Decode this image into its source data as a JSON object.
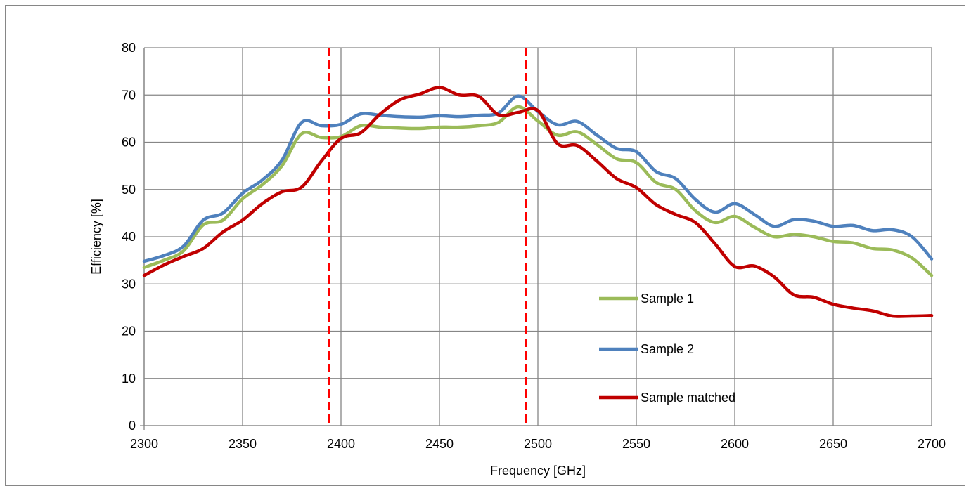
{
  "chart_data": {
    "type": "line",
    "title": "",
    "xlabel": "Frequency [GHz]",
    "ylabel": "Efficiency [%]",
    "xlim": [
      2300,
      2700
    ],
    "ylim": [
      0,
      80
    ],
    "xticks": [
      2300,
      2350,
      2400,
      2450,
      2500,
      2550,
      2600,
      2650,
      2700
    ],
    "yticks": [
      0,
      10,
      20,
      30,
      40,
      50,
      60,
      70,
      80
    ],
    "grid": true,
    "legend_position": "bottom-right",
    "x": [
      2300,
      2310,
      2320,
      2330,
      2340,
      2350,
      2360,
      2370,
      2380,
      2390,
      2400,
      2410,
      2420,
      2430,
      2440,
      2450,
      2460,
      2470,
      2480,
      2490,
      2500,
      2510,
      2520,
      2530,
      2540,
      2550,
      2560,
      2570,
      2580,
      2590,
      2600,
      2610,
      2620,
      2630,
      2640,
      2650,
      2660,
      2670,
      2680,
      2690,
      2700
    ],
    "series": [
      {
        "name": "Sample 1",
        "color": "#9bbb59",
        "values": [
          33.5,
          35,
          37,
          42.5,
          43.5,
          48,
          51,
          55,
          61.8,
          61,
          61.2,
          63.5,
          63.2,
          63,
          62.9,
          63.2,
          63.2,
          63.5,
          64.2,
          67.5,
          64.5,
          61.5,
          62.2,
          59.5,
          56.5,
          55.7,
          51.5,
          50,
          45.5,
          43,
          44.3,
          42,
          40,
          40.5,
          40,
          39,
          38.7,
          37.5,
          37.2,
          35.5,
          31.8
        ]
      },
      {
        "name": "Sample 2",
        "color": "#4f81bd",
        "values": [
          34.8,
          36,
          38,
          43.5,
          45,
          49.2,
          52,
          56.2,
          64.2,
          63.5,
          63.8,
          66,
          65.7,
          65.4,
          65.3,
          65.6,
          65.4,
          65.7,
          66.2,
          69.8,
          66.5,
          63.7,
          64.4,
          61.5,
          58.7,
          58,
          53.8,
          52.3,
          47.9,
          45.2,
          47,
          44.7,
          42.2,
          43.6,
          43.3,
          42.2,
          42.4,
          41.3,
          41.5,
          40,
          35.3
        ]
      },
      {
        "name": "Sample matched",
        "color": "#c00000",
        "values": [
          31.8,
          34,
          35.8,
          37.5,
          41,
          43.5,
          47,
          49.5,
          50.5,
          56,
          60.8,
          62,
          66,
          69,
          70.2,
          71.6,
          70,
          69.7,
          65.8,
          66.3,
          66.7,
          59.7,
          59.3,
          56,
          52.3,
          50.4,
          46.8,
          44.7,
          43,
          38.5,
          33.7,
          33.8,
          31.5,
          27.7,
          27.2,
          25.7,
          24.9,
          24.3,
          23.2,
          23.2,
          23.3
        ]
      }
    ],
    "reference_lines": [
      {
        "x": 2394,
        "color": "#ff0000",
        "style": "dashed"
      },
      {
        "x": 2494,
        "color": "#ff0000",
        "style": "dashed"
      }
    ]
  }
}
